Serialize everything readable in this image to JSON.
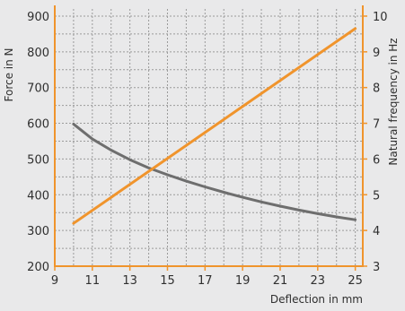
{
  "chart_data": {
    "type": "line",
    "xlabel": "Deflection in mm",
    "ylabel_left": "Force in N",
    "ylabel_right": "Natural frequency in Hz",
    "xlim": [
      9,
      25.4
    ],
    "ylim_left": [
      200,
      920
    ],
    "ylim_right": [
      3,
      10.2
    ],
    "x_ticks": [
      9,
      11,
      13,
      15,
      17,
      19,
      21,
      23,
      25
    ],
    "y_left_ticks": [
      200,
      300,
      400,
      500,
      600,
      700,
      800,
      900
    ],
    "y_right_ticks": [
      3,
      4,
      5,
      6,
      7,
      8,
      9,
      10
    ],
    "grid": true,
    "colors": {
      "force": "#6e6e6e",
      "frequency": "#f0942c",
      "axis": "#f0942c",
      "background": "#e9e9ea",
      "grid": "#9a9a9a"
    },
    "series": [
      {
        "axis": "left",
        "x": [
          10,
          11,
          12,
          13,
          14,
          15,
          16,
          17,
          18,
          19,
          20,
          21,
          22,
          23,
          24,
          25
        ],
        "y": [
          598,
          556,
          525,
          498,
          475,
          456,
          438,
          422,
          407,
          393,
          380,
          368,
          357,
          347,
          338,
          330
        ]
      },
      {
        "axis": "right",
        "x": [
          10,
          25
        ],
        "y": [
          4.2,
          9.65
        ]
      }
    ]
  }
}
